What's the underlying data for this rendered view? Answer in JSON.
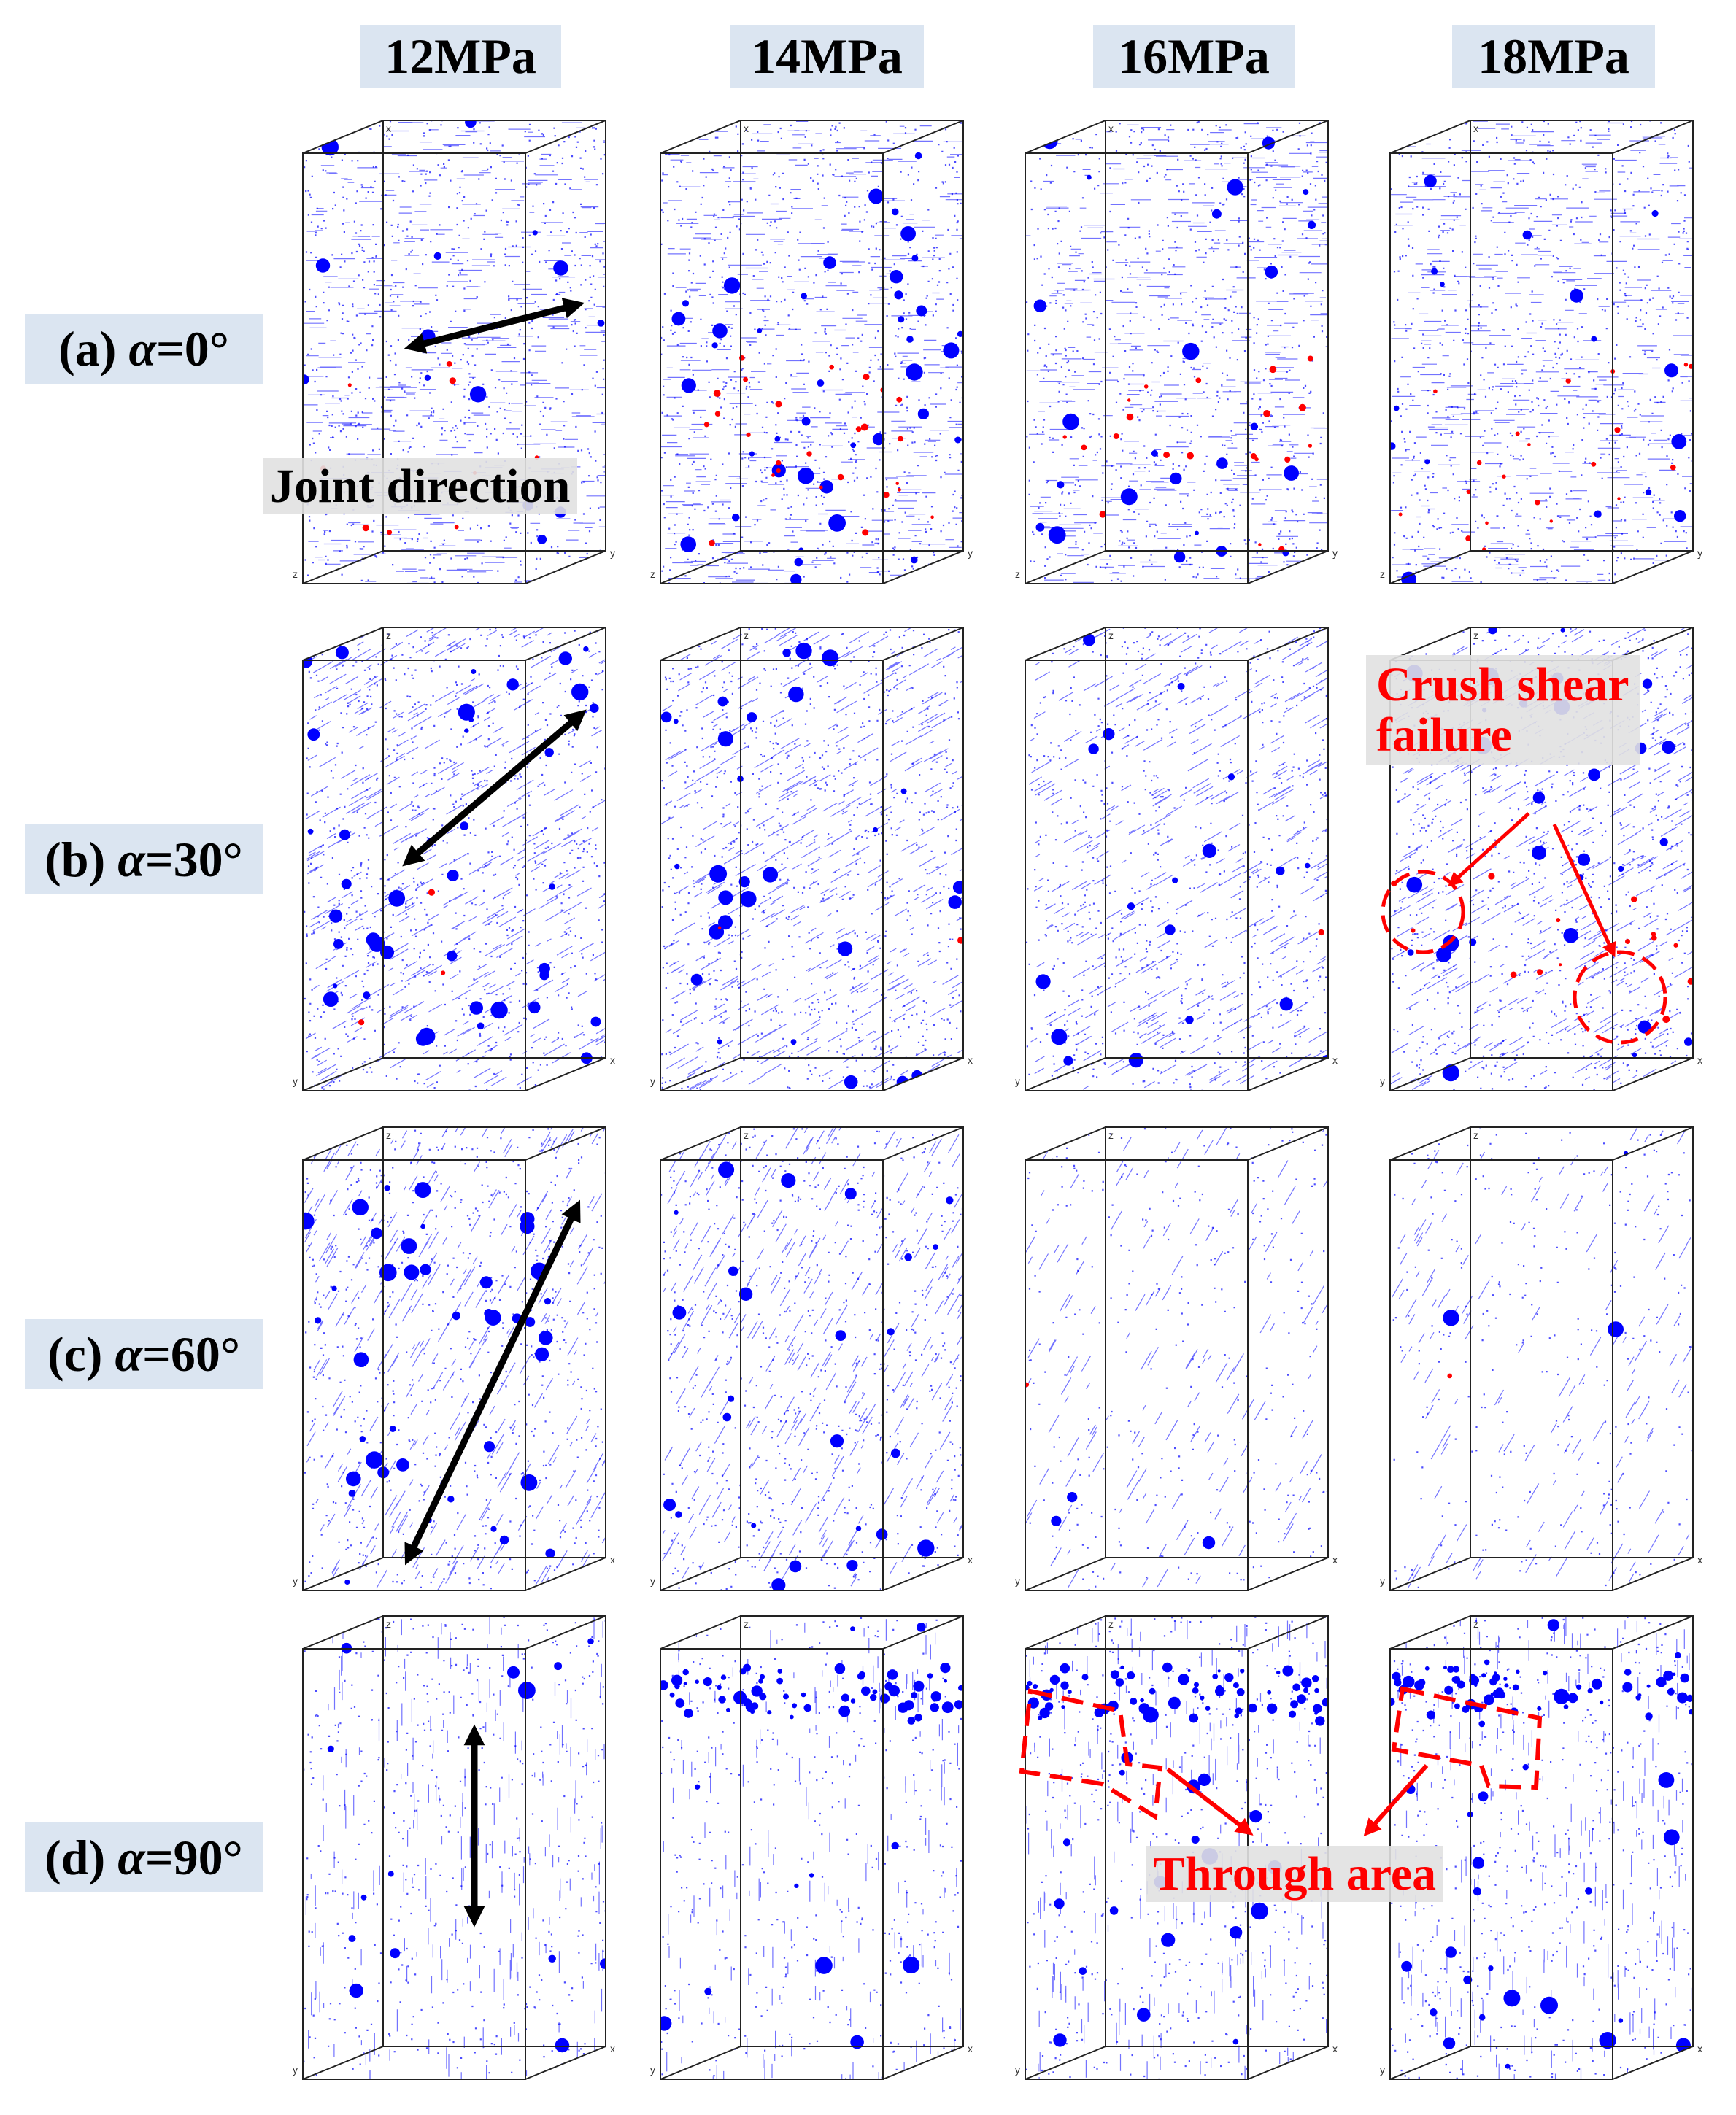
{
  "figure": {
    "columns": [
      "12MPa",
      "14MPa",
      "16MPa",
      "18MPa"
    ],
    "rows": [
      {
        "prefix": "(a)",
        "symbol": "α",
        "value": "=0°"
      },
      {
        "prefix": "(b)",
        "symbol": "α",
        "value": "=30°"
      },
      {
        "prefix": "(c)",
        "symbol": "α",
        "value": "=60°"
      },
      {
        "prefix": "(d)",
        "symbol": "α",
        "value": "=90°"
      }
    ],
    "axis_letters": {
      "x": "x",
      "y": "y",
      "z": "z"
    },
    "joint_angles_deg": [
      0,
      30,
      60,
      90
    ],
    "annotations": {
      "joint_direction": "Joint direction",
      "crush_shear_line1": "Crush shear",
      "crush_shear_line2": "failure",
      "through_area": "Through area"
    },
    "colors": {
      "crack_blue": "#0000ff",
      "failure_red": "#ff0000",
      "header_bg": "#dbe5f1",
      "arrow_black": "#000000"
    }
  }
}
